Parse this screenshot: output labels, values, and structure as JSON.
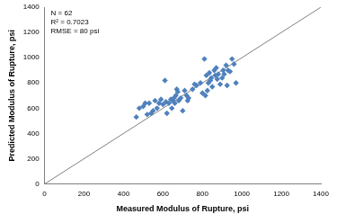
{
  "chart_data": {
    "type": "scatter",
    "xlabel": "Measured Modulus of Rupture, psi",
    "ylabel": "Predicted Modulus of Rupture, psi",
    "annotations": [
      "N = 62",
      "R² = 0.7023",
      "RMSE = 80 psi"
    ],
    "xlim": [
      0,
      1400
    ],
    "xticks": [
      0,
      200,
      400,
      600,
      800,
      1000,
      1200,
      1400
    ],
    "ylim": [
      0,
      1400
    ],
    "yticks": [
      0,
      200,
      400,
      600,
      800,
      1000,
      1200,
      1400
    ],
    "grid": false,
    "series": [
      {
        "type": "scatter",
        "color": "#4f81bd",
        "marker": "diamond",
        "x": [
          465,
          480,
          500,
          510,
          520,
          530,
          540,
          550,
          560,
          570,
          580,
          590,
          600,
          610,
          615,
          620,
          630,
          640,
          645,
          650,
          655,
          660,
          665,
          670,
          675,
          680,
          690,
          700,
          710,
          720,
          725,
          730,
          750,
          760,
          770,
          790,
          800,
          810,
          815,
          820,
          825,
          830,
          835,
          840,
          845,
          850,
          860,
          865,
          870,
          875,
          880,
          890,
          900,
          905,
          910,
          920,
          925,
          930,
          940,
          950,
          960,
          970
        ],
        "values": [
          530,
          600,
          615,
          640,
          550,
          640,
          560,
          580,
          660,
          600,
          640,
          670,
          630,
          820,
          650,
          560,
          640,
          670,
          600,
          660,
          680,
          640,
          700,
          750,
          730,
          660,
          680,
          580,
          740,
          700,
          660,
          680,
          750,
          790,
          780,
          800,
          720,
          990,
          700,
          860,
          740,
          800,
          880,
          820,
          840,
          770,
          900,
          860,
          920,
          830,
          870,
          790,
          840,
          900,
          870,
          940,
          780,
          900,
          890,
          990,
          950,
          800
        ]
      },
      {
        "type": "line",
        "color": "#808080",
        "line_style": "solid",
        "x": [
          0,
          1400
        ],
        "values": [
          0,
          1400
        ]
      }
    ]
  }
}
